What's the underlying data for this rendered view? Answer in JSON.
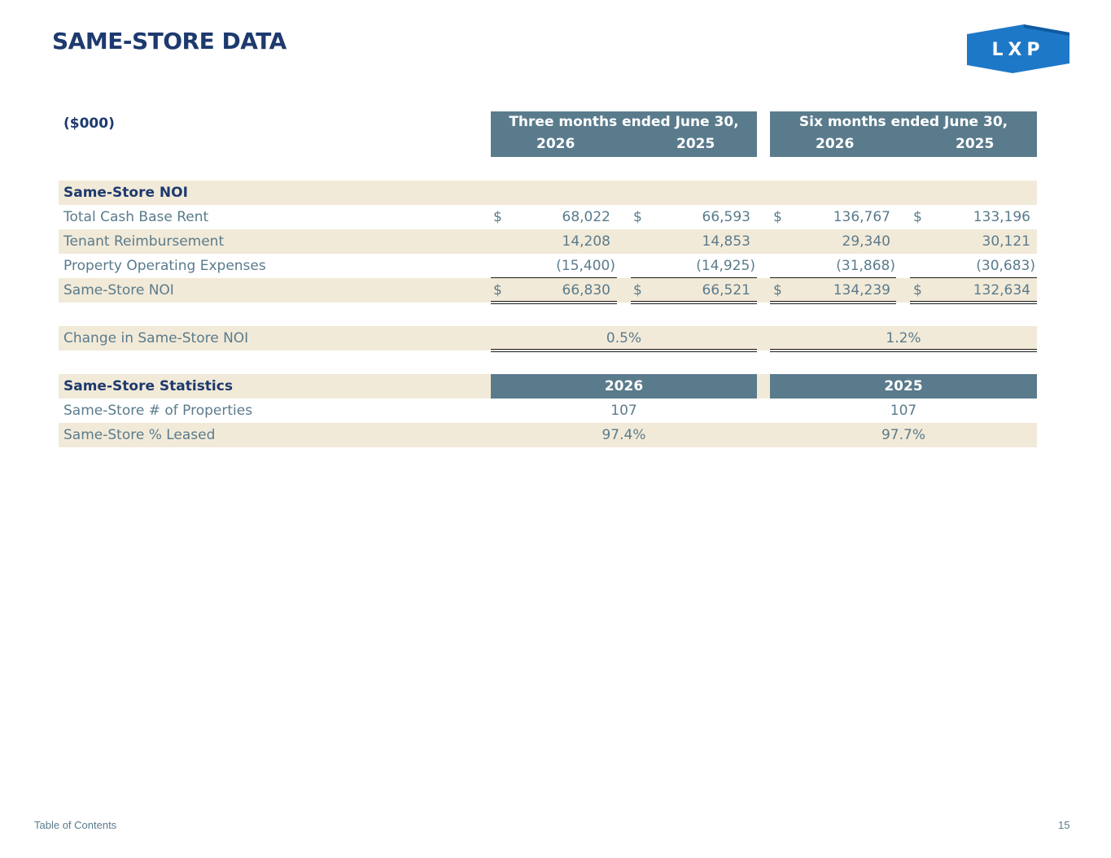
{
  "header": {
    "title": "SAME-STORE DATA",
    "logo_text": "LXP"
  },
  "table": {
    "unit_label": "($000)",
    "period_headers": [
      {
        "label": "Three months ended June 30,",
        "years": [
          "2026",
          "2025"
        ]
      },
      {
        "label": "Six months ended June 30,",
        "years": [
          "2026",
          "2025"
        ]
      }
    ],
    "section_noi": "Same-Store NOI",
    "rows": [
      {
        "label": "Total Cash Base Rent",
        "dollar": "$",
        "values": [
          "68,022",
          "66,593",
          "136,767",
          "133,196"
        ]
      },
      {
        "label": "Tenant Reimbursement",
        "dollar": "",
        "values": [
          "14,208",
          "14,853",
          "29,340",
          "30,121"
        ]
      },
      {
        "label": "Property Operating Expenses",
        "dollar": "",
        "values": [
          "(15,400)",
          "(14,925)",
          "(31,868)",
          "(30,683)"
        ]
      },
      {
        "label": "Same-Store NOI",
        "dollar": "$",
        "values": [
          "66,830",
          "66,521",
          "134,239",
          "132,634"
        ]
      }
    ],
    "change_row": {
      "label": "Change in Same-Store NOI",
      "values": [
        "0.5%",
        "1.2%"
      ]
    },
    "statistics": {
      "title": "Same-Store Statistics",
      "years": [
        "2026",
        "2025"
      ],
      "rows": [
        {
          "label": "Same-Store # of Properties",
          "values": [
            "107",
            "107"
          ]
        },
        {
          "label": "Same-Store % Leased",
          "values": [
            "97.4%",
            "97.7%"
          ]
        }
      ]
    }
  },
  "footer": {
    "toc_link": "Table of Contents",
    "page_number": "15"
  },
  "colors": {
    "title": "#1d3a6e",
    "header_fill": "#5a7b8c",
    "band": "#f2ead8",
    "logo": "#1e78c8"
  }
}
